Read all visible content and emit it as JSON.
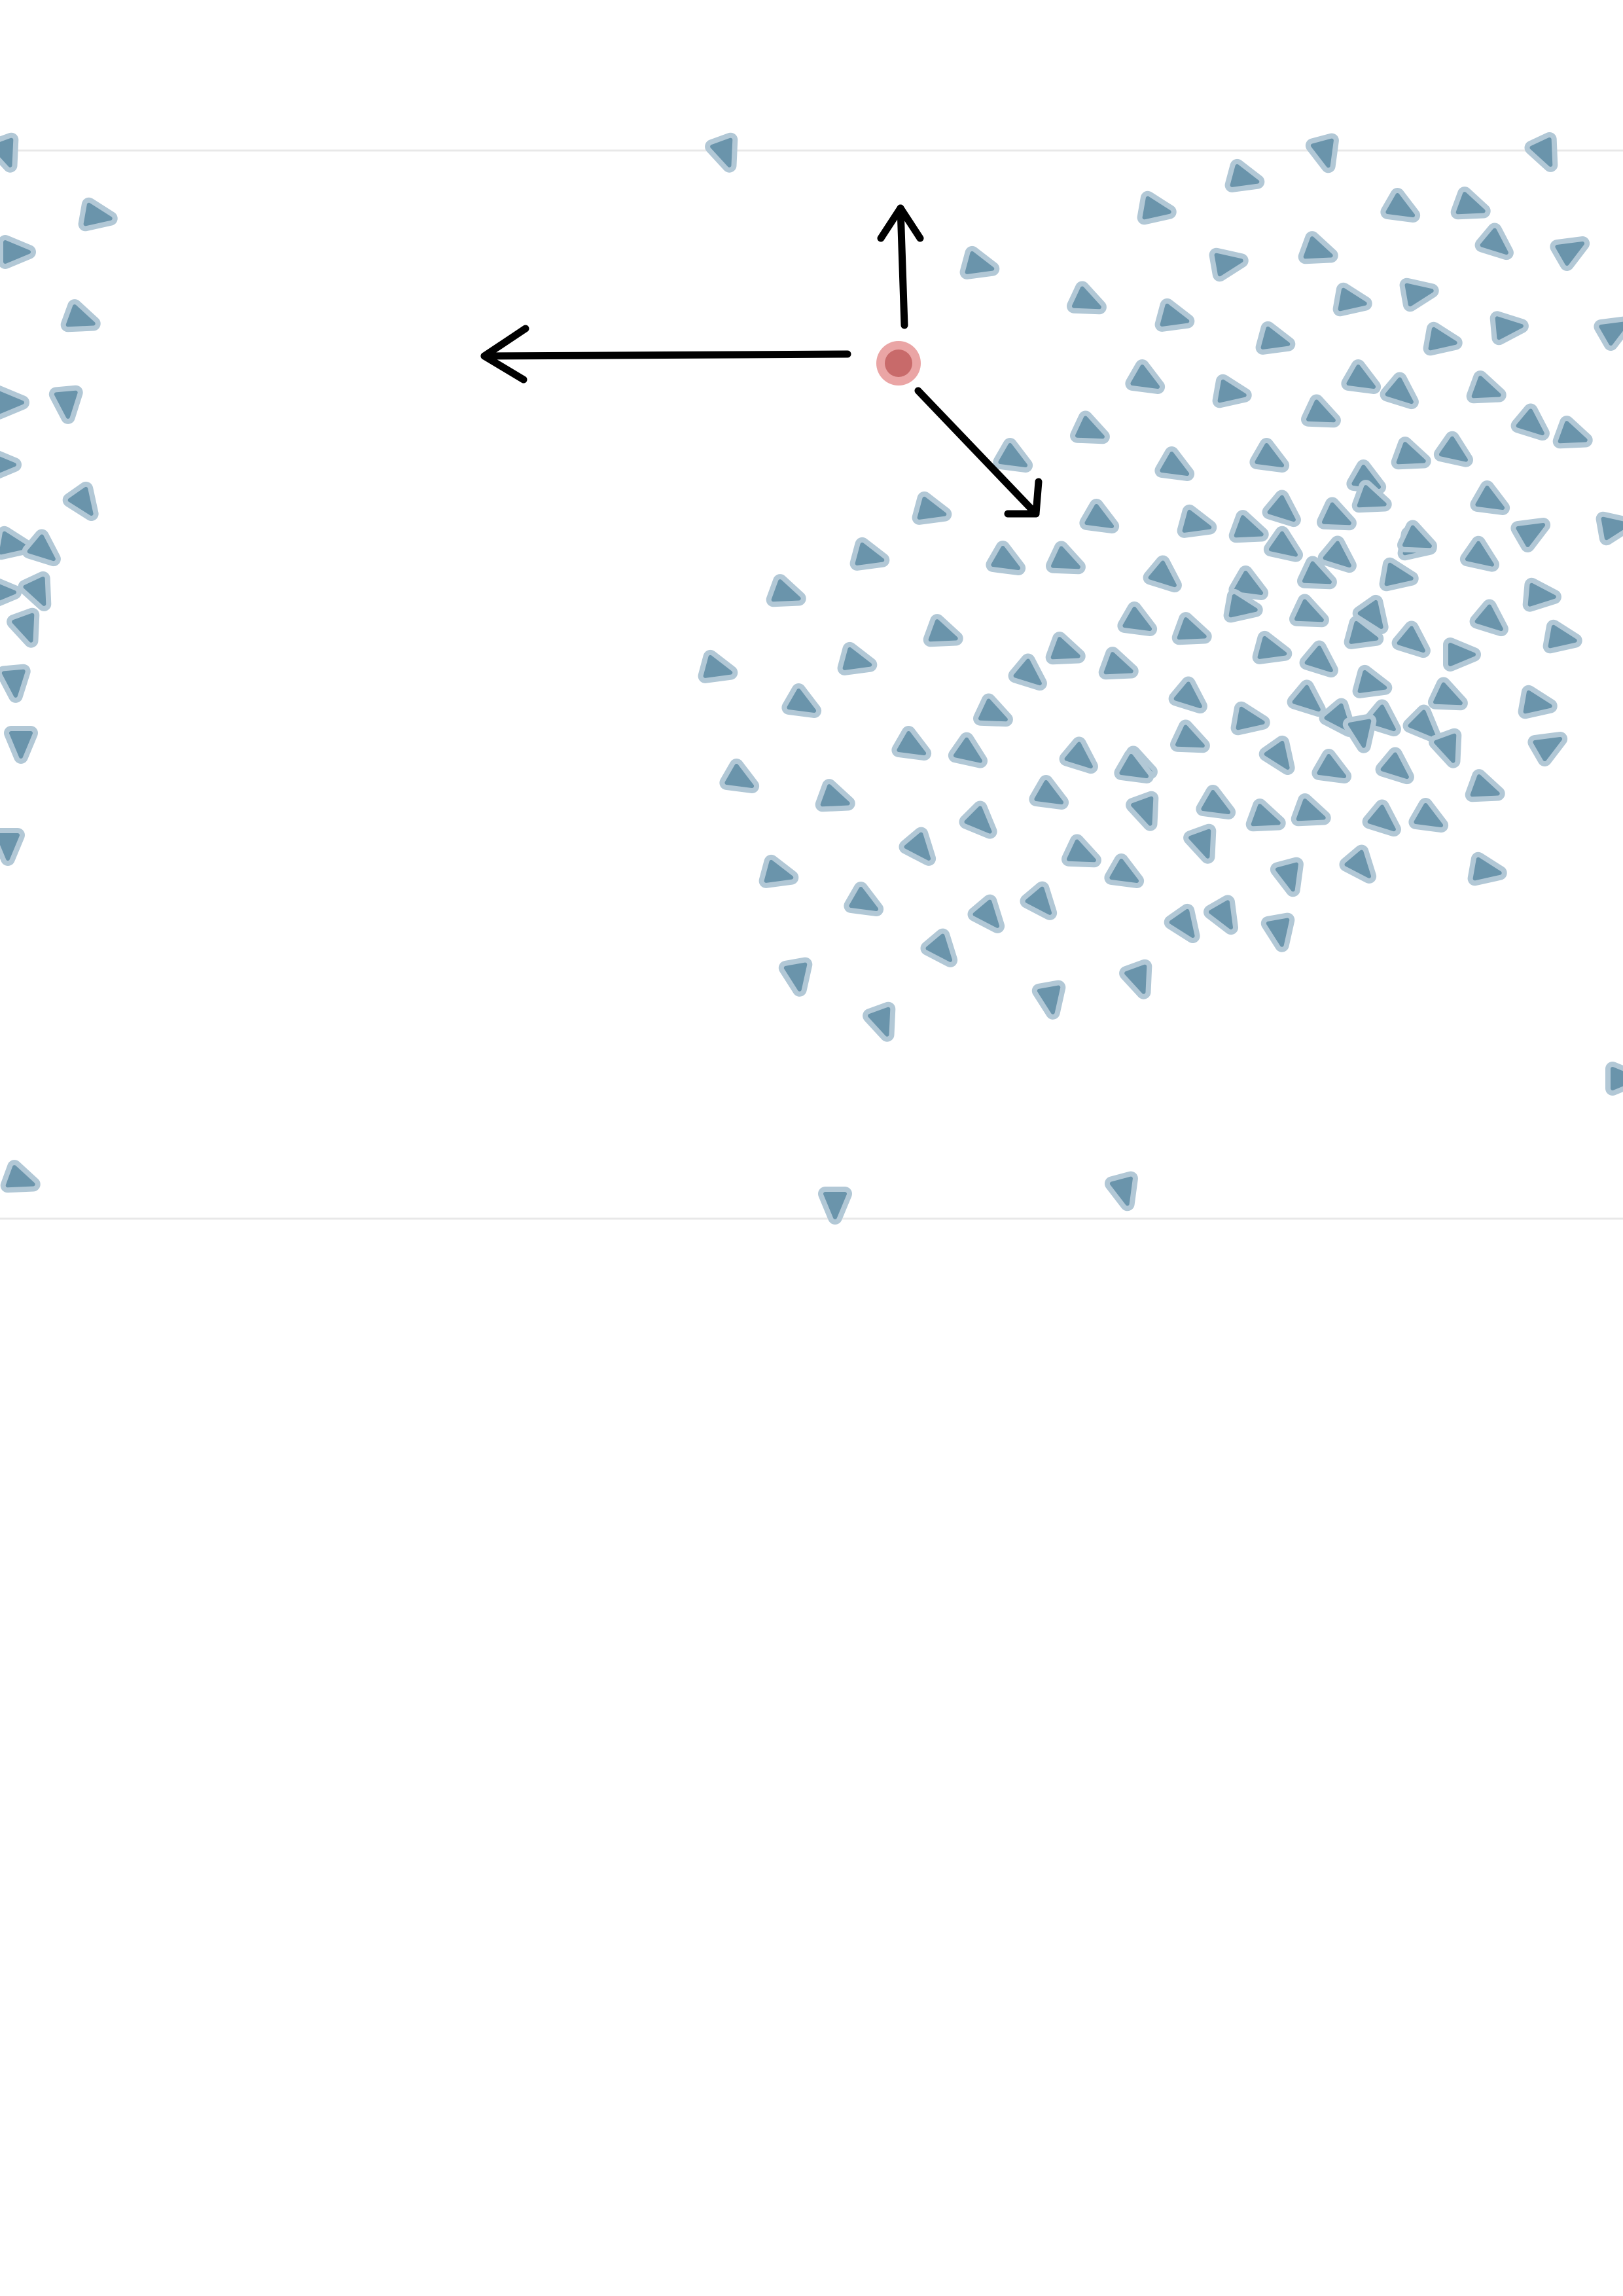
{
  "diagram": {
    "description_visible_text": "",
    "colors": {
      "background": "#ffffff",
      "frame_line": "#e8e8e8",
      "agent_fill": "#6a94ab",
      "agent_outline": "#b2c8d6",
      "focus_fill": "#c86a6a",
      "focus_outline": "#eaa5a5",
      "arrow": "#000000"
    },
    "agent_icon": "triangle-boid-icon",
    "focus_icon": "circle-marker-icon",
    "arrow_icon": "arrow-icon",
    "arrow_count": 3,
    "arrow_directions": [
      "left",
      "up",
      "down-right"
    ]
  }
}
